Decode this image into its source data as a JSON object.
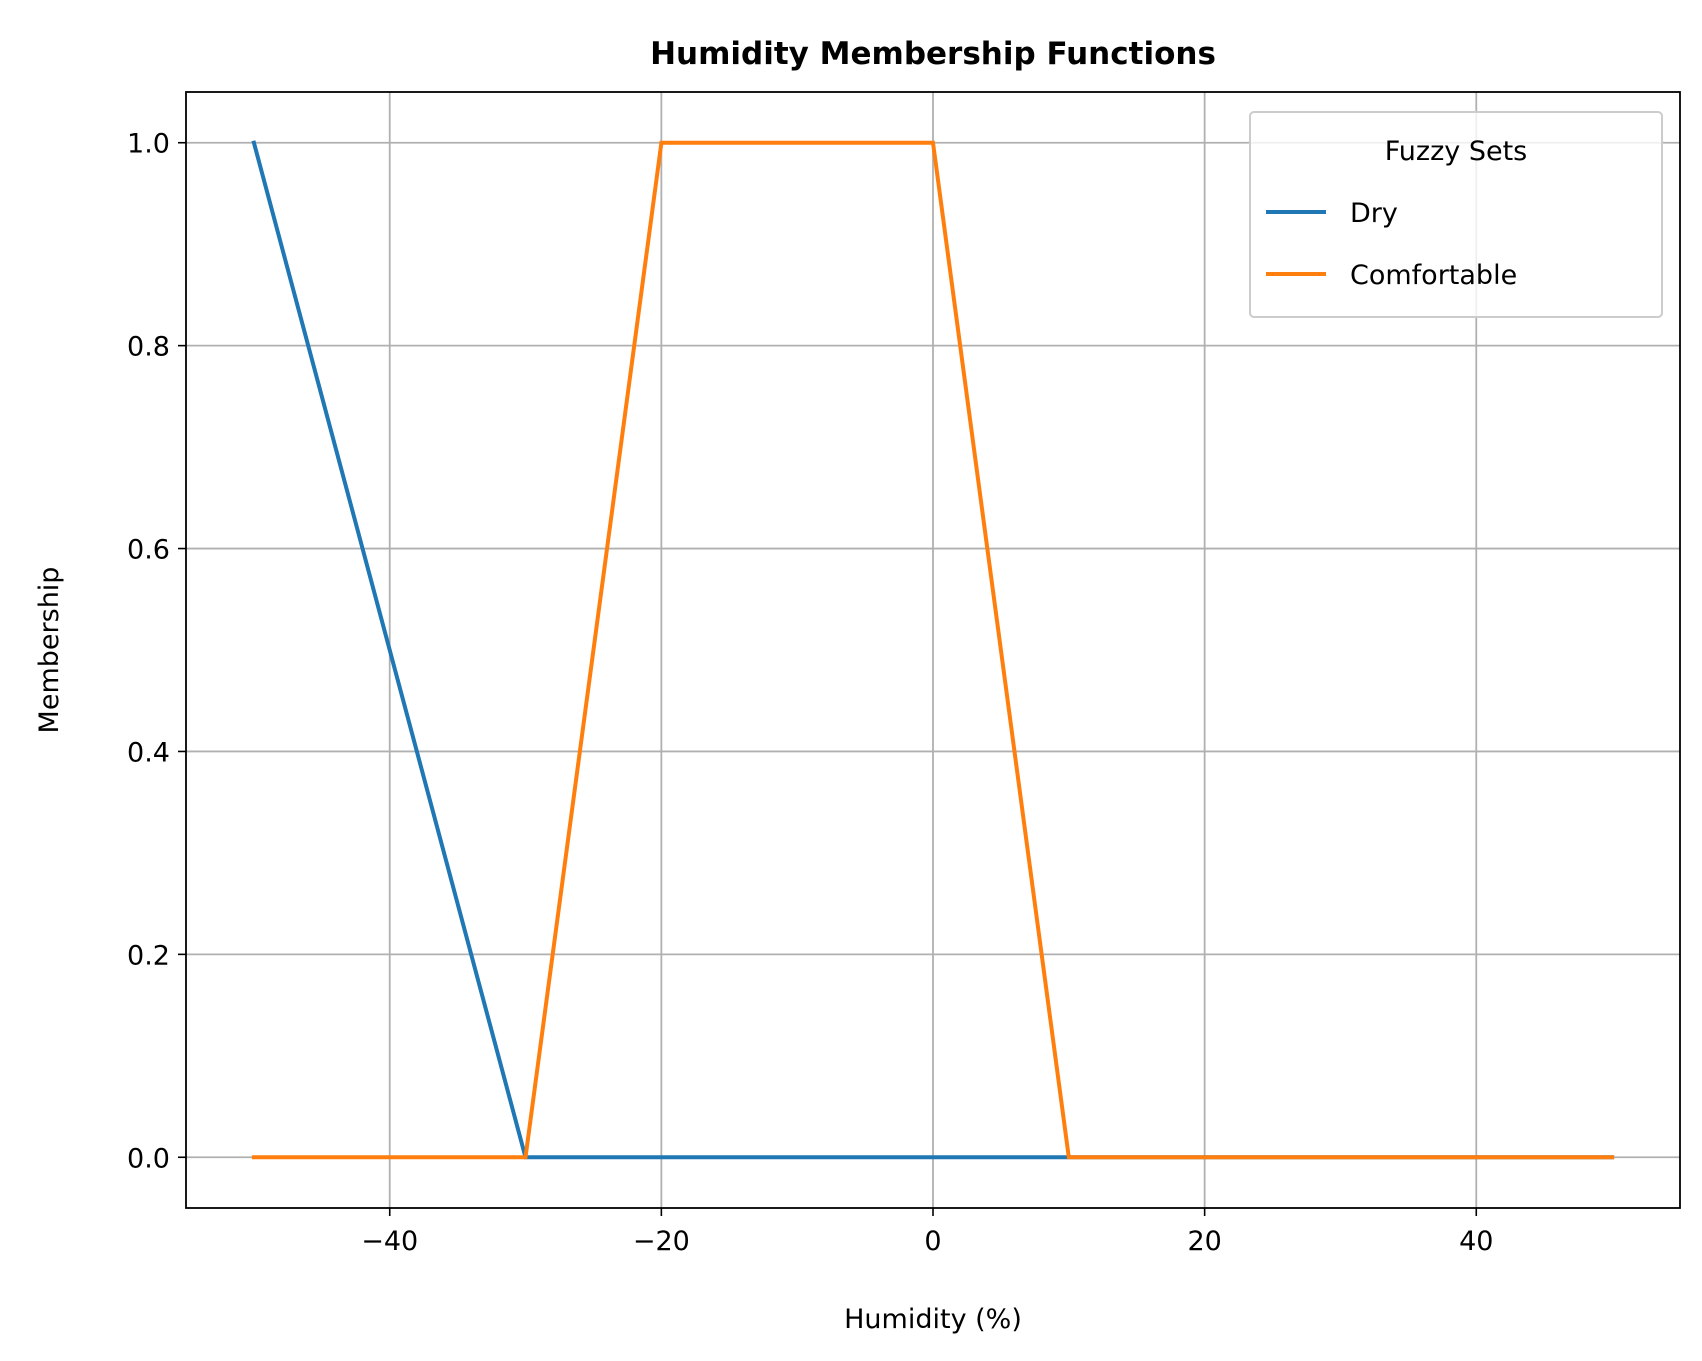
{
  "chart_data": {
    "type": "line",
    "title": "Humidity Membership Functions",
    "xlabel": "Humidity (%)",
    "ylabel": "Membership",
    "xlim": [
      -55,
      55
    ],
    "ylim": [
      -0.05,
      1.05
    ],
    "xticks": [
      -40,
      -20,
      0,
      20,
      40
    ],
    "xtick_labels": [
      "−40",
      "−20",
      "0",
      "20",
      "40"
    ],
    "yticks": [
      0.0,
      0.2,
      0.4,
      0.6,
      0.8,
      1.0
    ],
    "ytick_labels": [
      "0.0",
      "0.2",
      "0.4",
      "0.6",
      "0.8",
      "1.0"
    ],
    "grid": true,
    "legend": {
      "title": "Fuzzy Sets",
      "position": "top-right"
    },
    "series": [
      {
        "name": "Dry",
        "color": "#1f77b4",
        "x": [
          -50,
          -30,
          10,
          50
        ],
        "y": [
          1.0,
          0.0,
          0.0,
          0.0
        ]
      },
      {
        "name": "Comfortable",
        "color": "#ff7f0e",
        "x": [
          -50,
          -30,
          -20,
          0,
          10,
          50
        ],
        "y": [
          0.0,
          0.0,
          1.0,
          1.0,
          0.0,
          0.0
        ]
      }
    ]
  }
}
